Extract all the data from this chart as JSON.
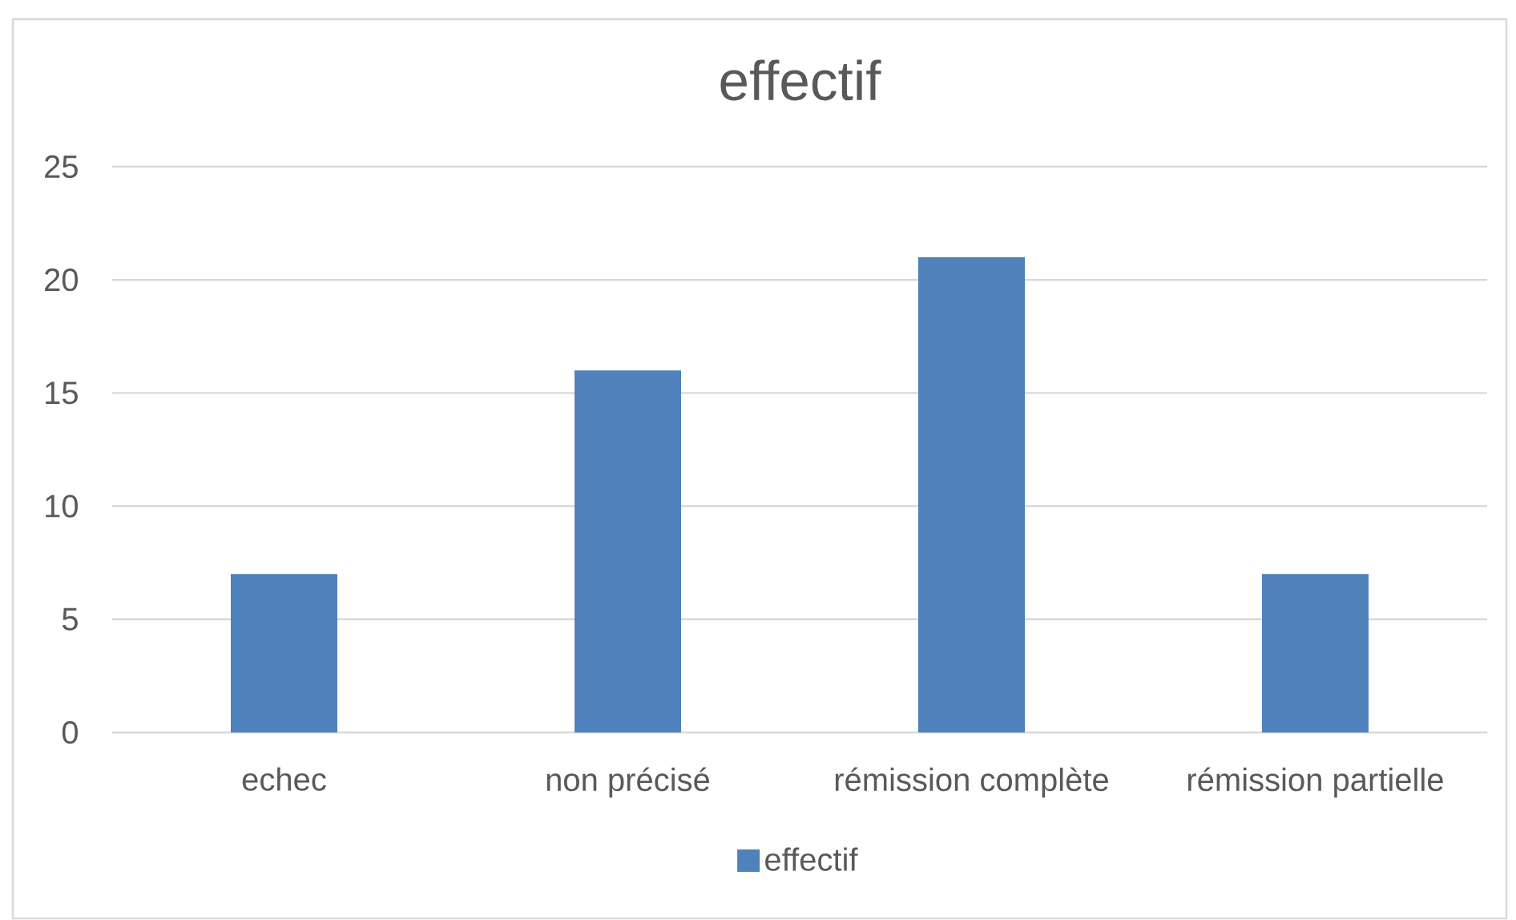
{
  "chart_data": {
    "type": "bar",
    "title": "effectif",
    "categories": [
      "echec",
      "non précisé",
      "rémission complète",
      "rémission partielle"
    ],
    "series": [
      {
        "name": "effectif",
        "color": "#4f81bd",
        "values": [
          7,
          16,
          21,
          7
        ]
      }
    ],
    "ylim": [
      0,
      25
    ],
    "yticks": [
      0,
      5,
      10,
      15,
      20,
      25
    ],
    "grid": "y",
    "legend": "bottom"
  }
}
